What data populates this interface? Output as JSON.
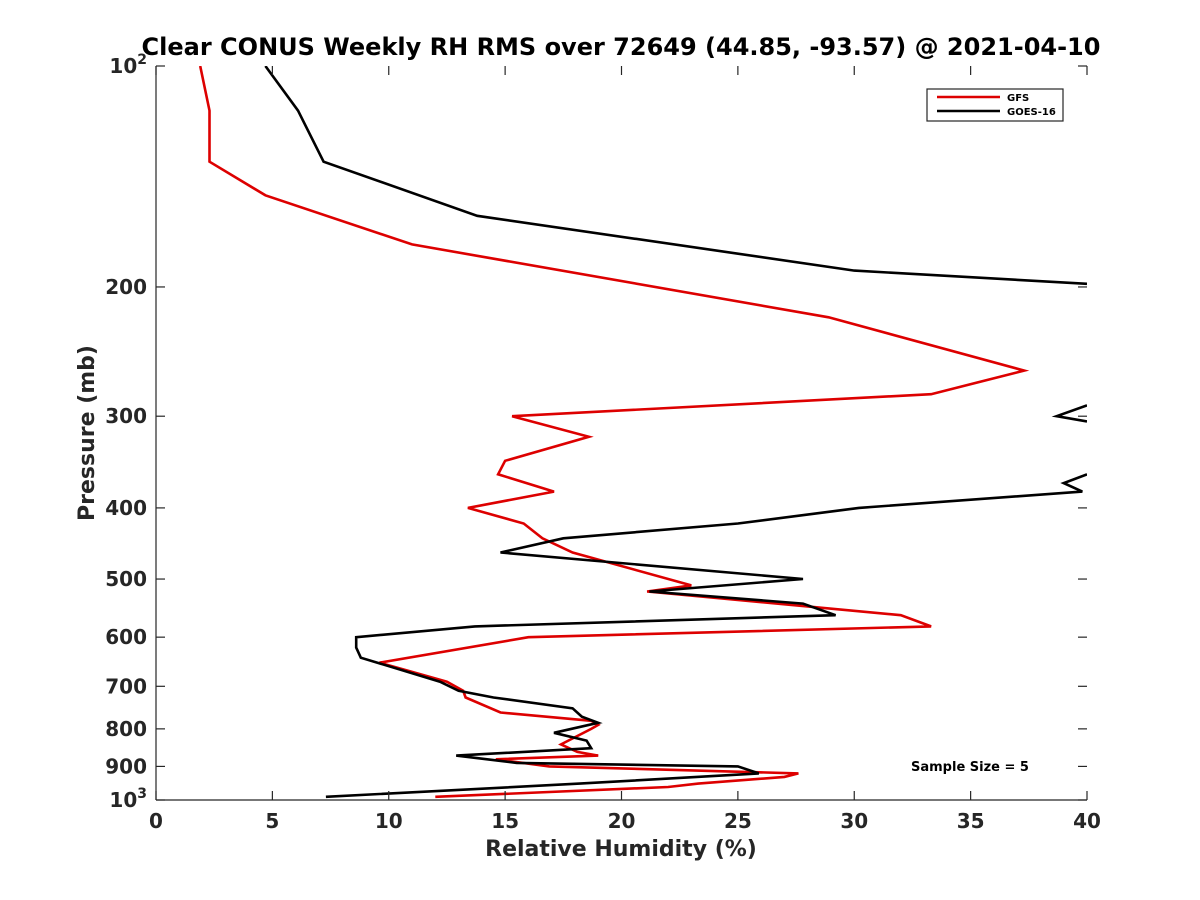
{
  "chart_data": {
    "type": "line",
    "title": "Clear CONUS Weekly RH RMS over 72649 (44.85, -93.57) @ 2021-04-10",
    "xlabel": "Relative Humidity (%)",
    "ylabel": "Pressure (mb)",
    "xlim": [
      0,
      40
    ],
    "ylim": [
      100,
      1000
    ],
    "yscale": "log",
    "y_reversed": true,
    "grid": false,
    "legend_position": "top-right",
    "x_ticks": [
      "0",
      "5",
      "10",
      "15",
      "20",
      "25",
      "30",
      "35",
      "40"
    ],
    "y_ticks": [
      {
        "value": 100,
        "base": "10",
        "exp": "2"
      },
      {
        "value": 200,
        "label": "200"
      },
      {
        "value": 300,
        "label": "300"
      },
      {
        "value": 400,
        "label": "400"
      },
      {
        "value": 500,
        "label": "500"
      },
      {
        "value": 600,
        "label": "600"
      },
      {
        "value": 700,
        "label": "700"
      },
      {
        "value": 800,
        "label": "800"
      },
      {
        "value": 900,
        "label": "900"
      },
      {
        "value": 1000,
        "base": "10",
        "exp": "3"
      }
    ],
    "annotation": "Sample Size = 5",
    "series": [
      {
        "name": "GFS",
        "color": "#dd0000",
        "points": [
          [
            1.9,
            100
          ],
          [
            2.3,
            115
          ],
          [
            2.3,
            135
          ],
          [
            4.7,
            150
          ],
          [
            11.0,
            175
          ],
          [
            28.9,
            220
          ],
          [
            37.3,
            260
          ],
          [
            33.3,
            280
          ],
          [
            15.3,
            300
          ],
          [
            18.6,
            320
          ],
          [
            15.0,
            345
          ],
          [
            14.7,
            360
          ],
          [
            17.1,
            380
          ],
          [
            13.4,
            400
          ],
          [
            15.8,
            420
          ],
          [
            16.6,
            440
          ],
          [
            17.9,
            460
          ],
          [
            23.0,
            510
          ],
          [
            21.1,
            520
          ],
          [
            32.0,
            560
          ],
          [
            33.3,
            580
          ],
          [
            16.0,
            600
          ],
          [
            9.6,
            650
          ],
          [
            12.5,
            690
          ],
          [
            13.2,
            710
          ],
          [
            13.3,
            725
          ],
          [
            14.8,
            760
          ],
          [
            18.7,
            780
          ],
          [
            19.0,
            790
          ],
          [
            18.7,
            800
          ],
          [
            17.4,
            840
          ],
          [
            18.1,
            860
          ],
          [
            19.0,
            870
          ],
          [
            14.6,
            880
          ],
          [
            16.9,
            900
          ],
          [
            27.6,
            920
          ],
          [
            27.0,
            930
          ],
          [
            23.3,
            950
          ],
          [
            22.0,
            960
          ],
          [
            12.0,
            990
          ]
        ]
      },
      {
        "name": "GOES-16",
        "color": "#000000",
        "points": [
          [
            4.7,
            100
          ],
          [
            6.1,
            115
          ],
          [
            7.2,
            135
          ],
          [
            13.8,
            160
          ],
          [
            30.0,
            190
          ],
          [
            40.0,
            198
          ],
          null,
          [
            40.0,
            290
          ],
          [
            38.7,
            300
          ],
          [
            40.0,
            305
          ],
          null,
          [
            40.0,
            360
          ],
          [
            39.0,
            370
          ],
          [
            39.8,
            380
          ],
          [
            30.2,
            400
          ],
          [
            25.0,
            420
          ],
          [
            17.5,
            440
          ],
          [
            14.8,
            460
          ],
          [
            27.8,
            500
          ],
          [
            21.2,
            520
          ],
          [
            27.8,
            540
          ],
          [
            29.2,
            560
          ],
          [
            13.7,
            580
          ],
          [
            8.6,
            600
          ],
          [
            8.6,
            620
          ],
          [
            8.8,
            640
          ],
          [
            12.2,
            690
          ],
          [
            13.0,
            710
          ],
          [
            14.5,
            725
          ],
          [
            17.9,
            750
          ],
          [
            18.3,
            770
          ],
          [
            19.0,
            785
          ],
          [
            17.1,
            810
          ],
          [
            18.5,
            830
          ],
          [
            18.7,
            850
          ],
          [
            12.9,
            870
          ],
          [
            15.5,
            890
          ],
          [
            25.0,
            900
          ],
          [
            25.9,
            920
          ],
          [
            18.2,
            950
          ],
          [
            7.3,
            990
          ]
        ]
      }
    ]
  }
}
